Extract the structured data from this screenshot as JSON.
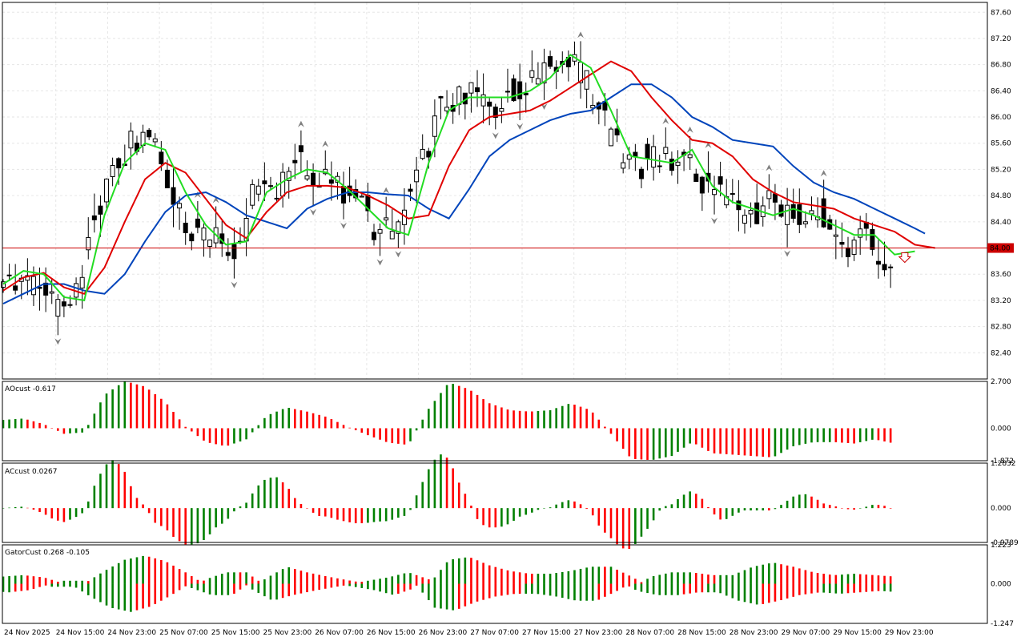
{
  "colors": {
    "up": "#008000",
    "down": "#ff0000",
    "candle": "#000000",
    "fractal": "#808080",
    "jaw": "#0044bb",
    "teeth": "#e00000",
    "lips": "#22dd22",
    "price_line": "#cc0000",
    "grid": "#e6e6e6"
  },
  "chart_data": [
    {
      "type": "candlestick",
      "yticks": [
        "87.60",
        "87.20",
        "86.80",
        "86.40",
        "86.00",
        "85.60",
        "85.20",
        "84.80",
        "84.40",
        "84.00",
        "83.60",
        "83.20",
        "82.80",
        "82.40"
      ],
      "ylim": [
        82.0,
        87.75
      ],
      "current_price": "84.00",
      "xticks": [
        "24 Nov 2025",
        "24 Nov 15:00",
        "24 Nov 23:00",
        "25 Nov 07:00",
        "25 Nov 15:00",
        "25 Nov 23:00",
        "26 Nov 07:00",
        "26 Nov 15:00",
        "26 Nov 23:00",
        "27 Nov 07:00",
        "27 Nov 15:00",
        "27 Nov 23:00",
        "28 Nov 07:00",
        "28 Nov 15:00",
        "28 Nov 23:00",
        "29 Nov 07:00",
        "29 Nov 15:00",
        "29 Nov 23:00"
      ],
      "series": [
        {
          "name": "alligator-jaw",
          "points": [
            [
              0,
              83.15
            ],
            [
              10,
              83.3
            ],
            [
              20,
              83.45
            ],
            [
              30,
              83.45
            ],
            [
              40,
              83.35
            ],
            [
              50,
              83.3
            ],
            [
              60,
              83.6
            ],
            [
              70,
              84.1
            ],
            [
              80,
              84.55
            ],
            [
              90,
              84.8
            ],
            [
              100,
              84.85
            ],
            [
              110,
              84.7
            ],
            [
              120,
              84.5
            ],
            [
              130,
              84.4
            ],
            [
              140,
              84.3
            ],
            [
              150,
              84.6
            ],
            [
              160,
              84.75
            ],
            [
              170,
              84.85
            ],
            [
              180,
              84.85
            ],
            [
              190,
              84.82
            ],
            [
              200,
              84.8
            ],
            [
              210,
              84.6
            ],
            [
              220,
              84.45
            ],
            [
              230,
              84.9
            ],
            [
              240,
              85.4
            ],
            [
              250,
              85.65
            ],
            [
              260,
              85.8
            ],
            [
              270,
              85.95
            ],
            [
              280,
              86.05
            ],
            [
              290,
              86.1
            ],
            [
              300,
              86.3
            ],
            [
              310,
              86.5
            ],
            [
              320,
              86.5
            ],
            [
              330,
              86.3
            ],
            [
              340,
              86.0
            ],
            [
              350,
              85.85
            ],
            [
              360,
              85.65
            ],
            [
              370,
              85.6
            ],
            [
              380,
              85.55
            ],
            [
              390,
              85.25
            ],
            [
              400,
              85.0
            ],
            [
              410,
              84.85
            ],
            [
              420,
              84.75
            ],
            [
              430,
              84.6
            ],
            [
              440,
              84.45
            ],
            [
              450,
              84.3
            ],
            [
              455,
              84.22
            ]
          ]
        },
        {
          "name": "alligator-teeth",
          "points": [
            [
              0,
              83.35
            ],
            [
              10,
              83.55
            ],
            [
              20,
              83.62
            ],
            [
              30,
              83.4
            ],
            [
              40,
              83.3
            ],
            [
              50,
              83.7
            ],
            [
              60,
              84.4
            ],
            [
              70,
              85.05
            ],
            [
              80,
              85.3
            ],
            [
              90,
              85.15
            ],
            [
              100,
              84.75
            ],
            [
              110,
              84.35
            ],
            [
              120,
              84.15
            ],
            [
              130,
              84.55
            ],
            [
              140,
              84.85
            ],
            [
              150,
              84.95
            ],
            [
              160,
              84.95
            ],
            [
              170,
              84.92
            ],
            [
              180,
              84.8
            ],
            [
              190,
              84.65
            ],
            [
              200,
              84.45
            ],
            [
              210,
              84.5
            ],
            [
              220,
              85.25
            ],
            [
              230,
              85.8
            ],
            [
              240,
              86.0
            ],
            [
              250,
              86.05
            ],
            [
              260,
              86.1
            ],
            [
              270,
              86.25
            ],
            [
              280,
              86.45
            ],
            [
              290,
              86.65
            ],
            [
              300,
              86.85
            ],
            [
              310,
              86.7
            ],
            [
              320,
              86.3
            ],
            [
              330,
              85.95
            ],
            [
              340,
              85.65
            ],
            [
              350,
              85.6
            ],
            [
              360,
              85.4
            ],
            [
              370,
              85.05
            ],
            [
              380,
              84.85
            ],
            [
              390,
              84.7
            ],
            [
              400,
              84.65
            ],
            [
              410,
              84.6
            ],
            [
              420,
              84.45
            ],
            [
              430,
              84.35
            ],
            [
              440,
              84.25
            ],
            [
              450,
              84.05
            ],
            [
              460,
              84.0
            ]
          ]
        },
        {
          "name": "alligator-lips",
          "points": [
            [
              0,
              83.45
            ],
            [
              10,
              83.65
            ],
            [
              20,
              83.6
            ],
            [
              30,
              83.25
            ],
            [
              40,
              83.2
            ],
            [
              50,
              84.5
            ],
            [
              60,
              85.3
            ],
            [
              70,
              85.6
            ],
            [
              80,
              85.5
            ],
            [
              90,
              84.85
            ],
            [
              100,
              84.35
            ],
            [
              110,
              84.05
            ],
            [
              120,
              84.1
            ],
            [
              130,
              84.85
            ],
            [
              140,
              85.05
            ],
            [
              150,
              85.2
            ],
            [
              160,
              85.15
            ],
            [
              170,
              84.9
            ],
            [
              180,
              84.6
            ],
            [
              190,
              84.3
            ],
            [
              200,
              84.2
            ],
            [
              210,
              85.3
            ],
            [
              220,
              86.1
            ],
            [
              230,
              86.3
            ],
            [
              240,
              86.3
            ],
            [
              250,
              86.3
            ],
            [
              260,
              86.4
            ],
            [
              270,
              86.6
            ],
            [
              280,
              86.95
            ],
            [
              290,
              86.75
            ],
            [
              300,
              86.1
            ],
            [
              310,
              85.4
            ],
            [
              320,
              85.35
            ],
            [
              330,
              85.3
            ],
            [
              340,
              85.5
            ],
            [
              350,
              84.95
            ],
            [
              360,
              84.7
            ],
            [
              370,
              84.6
            ],
            [
              380,
              84.5
            ],
            [
              390,
              84.6
            ],
            [
              400,
              84.5
            ],
            [
              410,
              84.35
            ],
            [
              420,
              84.2
            ],
            [
              430,
              84.2
            ],
            [
              440,
              83.9
            ],
            [
              450,
              83.95
            ]
          ]
        }
      ]
    },
    {
      "type": "bar",
      "name": "AOcust",
      "label": "AOcust -0.617",
      "yticks": [
        "2.700",
        "0.000",
        "-1.872"
      ],
      "ylim": [
        -1.872,
        2.7
      ]
    },
    {
      "type": "bar",
      "name": "ACcust",
      "label": "ACcust 0.0267",
      "yticks": [
        "1.2832",
        "0.000",
        "-0.9789"
      ],
      "ylim": [
        -0.9789,
        1.2832
      ]
    },
    {
      "type": "bar",
      "name": "GatorCust",
      "label": "GatorCust 0.268 -0.105",
      "yticks": [
        "1.223",
        "0.000",
        "-1.247"
      ],
      "ylim": [
        -1.247,
        1.223
      ]
    }
  ]
}
